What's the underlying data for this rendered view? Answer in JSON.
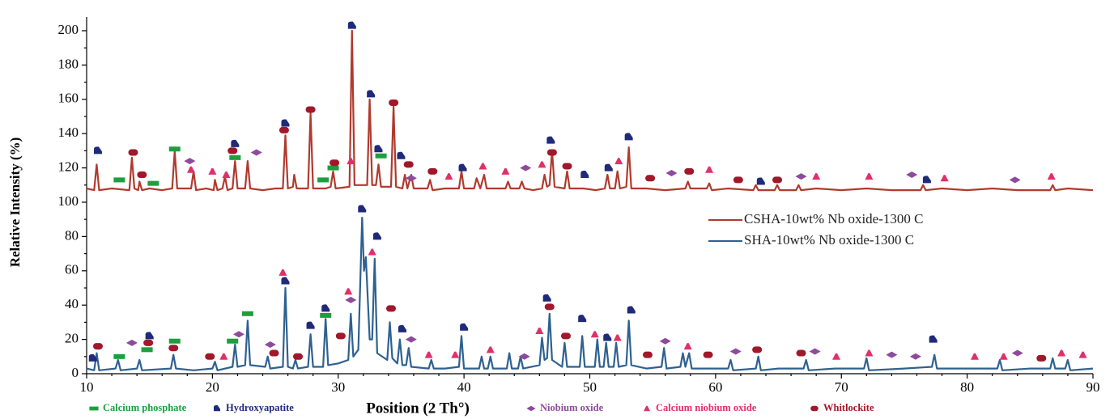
{
  "chart_data": {
    "type": "line",
    "y_label": "Relative Intensity (%)",
    "x_label": "Position (2 Th°)",
    "xlim": [
      10,
      90
    ],
    "ylim": [
      0,
      208
    ],
    "xticks": [
      10,
      20,
      30,
      40,
      50,
      60,
      70,
      80,
      90
    ],
    "yticks": [
      0,
      20,
      40,
      60,
      80,
      100,
      120,
      140,
      160,
      180,
      200
    ],
    "grid": false,
    "series": [
      {
        "name": "CSHA-10wt% Nb oxide-1300 C",
        "color": "#b03a2e",
        "x": [
          10,
          10.6,
          10.8,
          11,
          12,
          13.4,
          13.6,
          13.8,
          14.1,
          14.2,
          14.4,
          15,
          16,
          16.8,
          17,
          17.2,
          18.3,
          18.5,
          18.7,
          19.5,
          20.1,
          20.2,
          20.4,
          20.8,
          21,
          21.2,
          21.6,
          21.8,
          22,
          22.6,
          22.8,
          23,
          24,
          25,
          25.6,
          25.8,
          26,
          26.4,
          26.5,
          26.7,
          27.6,
          27.8,
          28,
          29,
          29.4,
          29.6,
          29.8,
          30.9,
          31.1,
          31.3,
          32.3,
          32.5,
          32.7,
          33,
          33.2,
          33.4,
          34.2,
          34.4,
          34.6,
          35.1,
          35.3,
          35.5,
          35.8,
          36,
          37.1,
          37.3,
          37.5,
          38.5,
          39.6,
          39.8,
          40,
          40.8,
          41,
          41.3,
          41.6,
          41.8,
          43.3,
          43.5,
          43.7,
          44.4,
          44.6,
          44.8,
          45.5,
          46.2,
          46.4,
          46.6,
          46.8,
          47,
          47.2,
          48,
          48.2,
          48.4,
          49.5,
          50.5,
          51.2,
          51.4,
          51.6,
          52,
          52.2,
          52.4,
          52.9,
          53.1,
          53.3,
          54.5,
          56,
          57.6,
          57.8,
          58,
          59.3,
          59.5,
          59.7,
          61,
          63,
          63.2,
          63.4,
          64.7,
          64.9,
          65.1,
          66.4,
          66.6,
          66.8,
          68,
          70,
          72,
          74,
          76.3,
          76.5,
          76.7,
          78,
          80,
          82,
          84,
          86.6,
          86.8,
          87,
          88,
          90
        ],
        "values": [
          108,
          107,
          122,
          107,
          108,
          107,
          126,
          108,
          107,
          112,
          107,
          108,
          107,
          108,
          130,
          108,
          108,
          118,
          107,
          108,
          107,
          113,
          107,
          108,
          115,
          107,
          108,
          124,
          108,
          108,
          124,
          108,
          107,
          108,
          108,
          139,
          108,
          109,
          116,
          108,
          108,
          152,
          108,
          108,
          109,
          118,
          108,
          109,
          200,
          110,
          110,
          160,
          110,
          110,
          122,
          109,
          109,
          156,
          109,
          108,
          116,
          108,
          116,
          108,
          108,
          113,
          107,
          108,
          108,
          118,
          108,
          108,
          114,
          108,
          116,
          108,
          108,
          112,
          108,
          108,
          112,
          108,
          107,
          108,
          116,
          109,
          110,
          130,
          109,
          108,
          118,
          108,
          108,
          107,
          108,
          116,
          108,
          108,
          118,
          108,
          109,
          132,
          108,
          108,
          107,
          108,
          112,
          108,
          108,
          111,
          107,
          108,
          107,
          110,
          107,
          107,
          110,
          107,
          107,
          110,
          107,
          108,
          107,
          108,
          107,
          107,
          110,
          107,
          108,
          107,
          108,
          107,
          107,
          110,
          107,
          108,
          107
        ]
      },
      {
        "name": "SHA-10wt% Nb oxide-1300 C",
        "color": "#2e6190",
        "x": [
          10,
          10.6,
          10.8,
          11,
          12.3,
          12.5,
          12.7,
          14,
          14.2,
          14.4,
          16.7,
          16.9,
          17.1,
          18.5,
          20,
          20.2,
          20.4,
          21.6,
          21.8,
          22,
          22.6,
          22.8,
          23,
          24.2,
          24.4,
          24.6,
          25.6,
          25.8,
          26,
          26.4,
          26.6,
          26.8,
          27.6,
          27.8,
          28,
          28.8,
          29,
          29.2,
          30,
          30.8,
          31,
          31.2,
          31.6,
          31.9,
          32.05,
          32.2,
          32.5,
          32.7,
          32.9,
          33.1,
          33.9,
          34.1,
          34.3,
          34.7,
          34.9,
          35.1,
          35.4,
          35.6,
          35.8,
          37.2,
          37.4,
          37.6,
          38.5,
          39.6,
          39.8,
          40,
          41.2,
          41.4,
          41.6,
          41.9,
          42.1,
          42.3,
          43.4,
          43.6,
          43.8,
          44.3,
          44.5,
          44.7,
          46,
          46.2,
          46.4,
          46.6,
          46.8,
          47,
          47.8,
          48,
          48.2,
          49.2,
          49.4,
          49.6,
          50.4,
          50.6,
          50.8,
          51.1,
          51.3,
          51.5,
          51.9,
          52.1,
          52.3,
          52.9,
          53.1,
          53.3,
          54.5,
          55.7,
          55.9,
          56.1,
          57.2,
          57.4,
          57.6,
          57.9,
          58.1,
          59.5,
          61,
          61.2,
          61.4,
          63.2,
          63.4,
          63.6,
          65,
          67,
          67.2,
          67.4,
          69.5,
          71.8,
          72,
          72.2,
          75,
          77.2,
          77.4,
          77.6,
          80,
          82.4,
          82.6,
          82.8,
          85,
          86.6,
          86.8,
          87,
          87.8,
          88,
          88.2,
          90
        ],
        "values": [
          3,
          2,
          12,
          2,
          3,
          8,
          2,
          3,
          8,
          2,
          3,
          11,
          3,
          2,
          3,
          7,
          2,
          4,
          17,
          4,
          5,
          31,
          5,
          4,
          10,
          3,
          4,
          50,
          4,
          3,
          8,
          3,
          4,
          23,
          4,
          4,
          32,
          5,
          6,
          8,
          35,
          10,
          14,
          91,
          60,
          68,
          20,
          20,
          67,
          12,
          8,
          30,
          9,
          6,
          20,
          5,
          5,
          15,
          4,
          3,
          8,
          3,
          3,
          4,
          22,
          3,
          3,
          10,
          3,
          3,
          10,
          3,
          3,
          12,
          3,
          3,
          10,
          3,
          5,
          21,
          8,
          9,
          35,
          8,
          4,
          18,
          4,
          4,
          22,
          4,
          4,
          20,
          4,
          4,
          18,
          4,
          4,
          18,
          4,
          5,
          31,
          5,
          3,
          4,
          15,
          3,
          4,
          12,
          4,
          12,
          3,
          3,
          3,
          8,
          2,
          3,
          10,
          2,
          3,
          3,
          8,
          2,
          3,
          3,
          9,
          2,
          3,
          4,
          11,
          3,
          3,
          3,
          8,
          2,
          3,
          3,
          9,
          3,
          3,
          8,
          2,
          3
        ]
      }
    ],
    "legend_position": "right",
    "phases": [
      {
        "name": "Calcium phosphate",
        "color": "#1e9e3e",
        "marker": "bar",
        "x": [
          12.6,
          15.3,
          17,
          21.8,
          28.8,
          29.6,
          33.4,
          12.6,
          14.8,
          17,
          21.6,
          22.8,
          29
        ],
        "y": [
          113,
          111,
          131,
          126,
          113,
          120,
          127,
          10,
          14,
          19,
          19,
          35,
          34
        ]
      },
      {
        "name": "Hydroxyapatite",
        "color": "#1f2a7a",
        "marker": "tab",
        "x": [
          10.9,
          21.8,
          25.8,
          31.1,
          32.6,
          33.2,
          35,
          39.9,
          46.9,
          49.6,
          51.5,
          53.1,
          63.6,
          76.8,
          10.5,
          15,
          25.8,
          27.8,
          29,
          31.9,
          33.1,
          35.1,
          40,
          46.6,
          49.4,
          51.4,
          53.3,
          77.3
        ],
        "y": [
          130,
          134,
          146,
          203,
          163,
          131,
          127,
          120,
          136,
          116,
          120,
          138,
          112,
          113,
          9,
          22,
          54,
          28,
          38,
          96,
          80,
          26,
          27,
          44,
          32,
          21,
          37,
          20
        ]
      },
      {
        "name": "Niobium oxide",
        "color": "#8e4a9c",
        "marker": "diamond",
        "x": [
          18.2,
          23.5,
          35.8,
          44.9,
          56.5,
          66.8,
          75.6,
          83.8,
          13.6,
          22.1,
          24.6,
          31,
          35.8,
          44.8,
          56,
          61.6,
          67.9,
          74,
          75.9,
          84
        ],
        "y": [
          124,
          129,
          114,
          120,
          117,
          115,
          116,
          113,
          18,
          23,
          17,
          43,
          20,
          10,
          19,
          13,
          13,
          11,
          10,
          12
        ]
      },
      {
        "name": "Calcium niobium oxide",
        "color": "#e0306a",
        "marker": "triangle",
        "x": [
          18.3,
          20,
          21.1,
          31,
          38.8,
          41.5,
          43.3,
          46.2,
          52.3,
          59.5,
          68,
          72.2,
          78.2,
          86.7,
          20.9,
          25.6,
          30.8,
          32.7,
          37.2,
          39.3,
          42.1,
          46,
          50.4,
          52.2,
          57.8,
          69.6,
          72.2,
          80.6,
          82.9,
          87.5,
          89.2
        ],
        "y": [
          119,
          118,
          116,
          124,
          115,
          121,
          118,
          122,
          124,
          119,
          115,
          115,
          114,
          115,
          10,
          59,
          48,
          71,
          11,
          11,
          14,
          25,
          23,
          21,
          16,
          10,
          12,
          10,
          10,
          12,
          11
        ]
      },
      {
        "name": "Whitlockite",
        "color": "#a0182a",
        "marker": "pill",
        "x": [
          13.7,
          14.4,
          21.6,
          25.7,
          27.8,
          29.7,
          34.4,
          35.6,
          37.5,
          47,
          48.2,
          54.8,
          57.9,
          61.8,
          64.9,
          10.9,
          14.9,
          16.9,
          19.8,
          24.9,
          26.8,
          30.2,
          34.2,
          46.8,
          48.1,
          54.6,
          59.4,
          63.3,
          66.8,
          85.9
        ],
        "y": [
          129,
          116,
          130,
          142,
          154,
          123,
          158,
          122,
          118,
          129,
          121,
          114,
          118,
          113,
          113,
          16,
          18,
          15,
          10,
          12,
          10,
          22,
          38,
          39,
          22,
          11,
          11,
          14,
          12,
          9
        ]
      }
    ]
  }
}
